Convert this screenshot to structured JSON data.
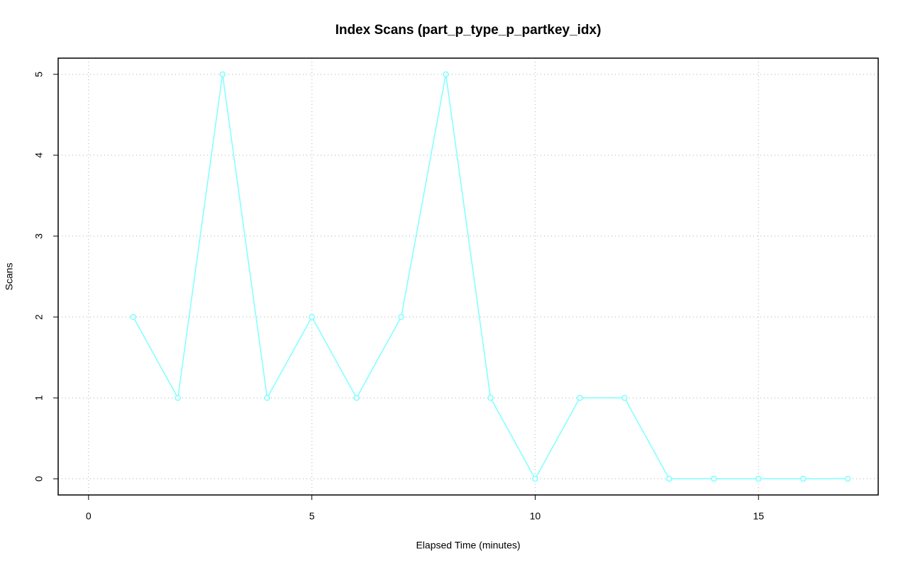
{
  "chart_data": {
    "type": "line",
    "title": "Index Scans (part_p_type_p_partkey_idx)",
    "x_label": "Elapsed Time (minutes)",
    "y_label": "Scans",
    "x": [
      1,
      2,
      3,
      4,
      5,
      6,
      7,
      8,
      9,
      10,
      11,
      12,
      13,
      14,
      15,
      16,
      17
    ],
    "series": [
      {
        "color": "#80ffff",
        "values": [
          2,
          1,
          5,
          1,
          2,
          1,
          2,
          5,
          1,
          0,
          1,
          1,
          0,
          0,
          0,
          0,
          0
        ]
      }
    ],
    "xlim": [
      -0.68,
      17.68
    ],
    "ylim": [
      -0.2,
      5.2
    ],
    "xticks": [
      0,
      5,
      10,
      15
    ],
    "yticks": [
      0,
      1,
      2,
      3,
      4,
      5
    ],
    "grid": true
  }
}
